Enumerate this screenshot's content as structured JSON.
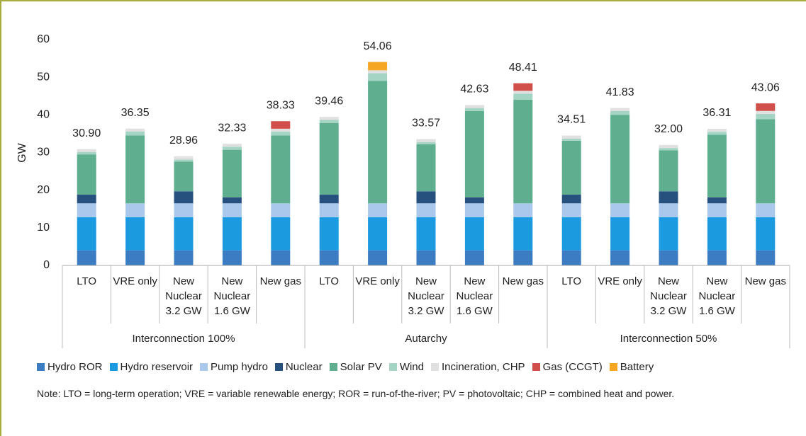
{
  "chart_data": {
    "type": "stacked_bar",
    "y_label": "GW",
    "categories": [
      "LTO",
      "VRE only",
      "New Nuclear 3.2 GW",
      "New Nuclear 1.6 GW",
      "New gas",
      "LTO",
      "VRE only",
      "New Nuclear 3.2 GW",
      "New Nuclear 1.6 GW",
      "New gas",
      "LTO",
      "VRE only",
      "New Nuclear 3.2 GW",
      "New Nuclear 1.6 GW",
      "New gas"
    ],
    "groups": [
      {
        "name": "Interconnection 100%",
        "size": 5
      },
      {
        "name": "Autarchy",
        "size": 5
      },
      {
        "name": "Interconnection 50%",
        "size": 5
      }
    ],
    "series": [
      {
        "name": "Hydro ROR",
        "color": "#3b7cc2",
        "values": [
          4,
          4,
          4,
          4,
          4,
          4,
          4,
          4,
          4,
          4,
          4,
          4,
          4,
          4,
          4
        ]
      },
      {
        "name": "Hydro reservoir",
        "color": "#1b9ae0",
        "values": [
          8.8,
          8.8,
          8.8,
          8.8,
          8.8,
          8.8,
          8.8,
          8.8,
          8.8,
          8.8,
          8.8,
          8.8,
          8.8,
          8.8,
          8.8
        ]
      },
      {
        "name": "Pump hydro",
        "color": "#a9c8ec",
        "values": [
          3.7,
          3.7,
          3.7,
          3.7,
          3.7,
          3.7,
          3.7,
          3.7,
          3.7,
          3.7,
          3.7,
          3.7,
          3.7,
          3.7,
          3.7
        ]
      },
      {
        "name": "Nuclear",
        "color": "#26507e",
        "values": [
          2.3,
          0,
          3.2,
          1.6,
          0,
          2.3,
          0,
          3.2,
          1.6,
          0,
          2.3,
          0,
          3.2,
          1.6,
          0
        ]
      },
      {
        "name": "Solar PV",
        "color": "#5fae8f",
        "values": [
          10.7,
          18.05,
          7.86,
          12.63,
          18.03,
          19.06,
          32.56,
          12.47,
          22.93,
          27.51,
          14.31,
          23.53,
          10.9,
          16.61,
          22.36
        ]
      },
      {
        "name": "Wind",
        "color": "#a4d5c4",
        "values": [
          0.6,
          1,
          0.6,
          0.8,
          1,
          0.8,
          2,
          0.6,
          0.8,
          1.6,
          0.6,
          1,
          0.6,
          0.8,
          1.4
        ]
      },
      {
        "name": "Incineration, CHP",
        "color": "#e0e0e0",
        "values": [
          0.8,
          0.8,
          0.8,
          0.8,
          0.8,
          0.8,
          0.8,
          0.8,
          0.8,
          0.8,
          0.8,
          0.8,
          0.8,
          0.8,
          0.8
        ]
      },
      {
        "name": "Gas (CCGT)",
        "color": "#d04f4a",
        "values": [
          0,
          0,
          0,
          0,
          2,
          0,
          0,
          0,
          0,
          2,
          0,
          0,
          0,
          0,
          2
        ]
      },
      {
        "name": "Battery",
        "color": "#f5a623",
        "values": [
          0,
          0,
          0,
          0,
          0,
          0,
          2.2,
          0,
          0,
          0,
          0,
          0,
          0,
          0,
          0
        ]
      }
    ],
    "totals": {
      "values": [
        30.9,
        36.35,
        28.96,
        32.33,
        38.33,
        39.46,
        54.06,
        33.57,
        42.63,
        48.41,
        34.51,
        41.83,
        32,
        36.31,
        43.06
      ],
      "value_labels": [
        "30.90",
        "36.35",
        "28.96",
        "32.33",
        "38.33",
        "39.46",
        "54.06",
        "33.57",
        "42.63",
        "48.41",
        "34.51",
        "41.83",
        "32.00",
        "36.31",
        "43.06"
      ]
    },
    "ylim": [
      0,
      60
    ],
    "yticks": [
      0,
      10,
      20,
      30,
      40,
      50,
      60
    ],
    "grid": false,
    "note": "Note: LTO = long-term operation; VRE = variable renewable energy; ROR = run-of-the-river; PV = photovoltaic; CHP = combined heat and power."
  }
}
